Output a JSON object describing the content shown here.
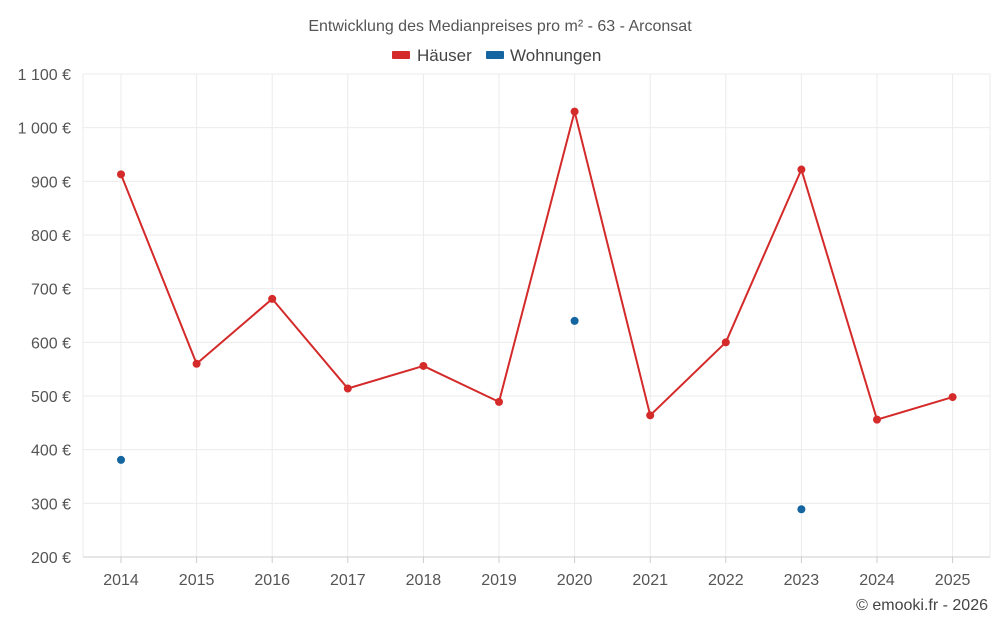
{
  "chart_data": {
    "type": "line",
    "title": "Entwicklung des Medianpreises pro m² - 63 - Arconsat",
    "categories": [
      "2014",
      "2015",
      "2016",
      "2017",
      "2018",
      "2019",
      "2020",
      "2021",
      "2022",
      "2023",
      "2024",
      "2025"
    ],
    "y_tick_labels": [
      "200 €",
      "300 €",
      "400 €",
      "500 €",
      "600 €",
      "700 €",
      "800 €",
      "900 €",
      "1 000 €",
      "1 100 €"
    ],
    "y_tick_values": [
      200,
      300,
      400,
      500,
      600,
      700,
      800,
      900,
      1000,
      1100
    ],
    "ylim": [
      200,
      1100
    ],
    "legend_position": "top-center",
    "series": [
      {
        "name": "Häuser",
        "color": "#d42a2a",
        "style": "line-markers",
        "values": [
          913,
          560,
          681,
          514,
          556,
          489,
          1030,
          464,
          600,
          922,
          456,
          498
        ]
      },
      {
        "name": "Wohnungen",
        "color": "#1565a0",
        "style": "markers",
        "values": [
          381,
          null,
          null,
          null,
          null,
          null,
          640,
          null,
          null,
          289,
          null,
          null
        ]
      }
    ]
  },
  "footer": {
    "copyright": "© emooki.fr - 2026"
  }
}
